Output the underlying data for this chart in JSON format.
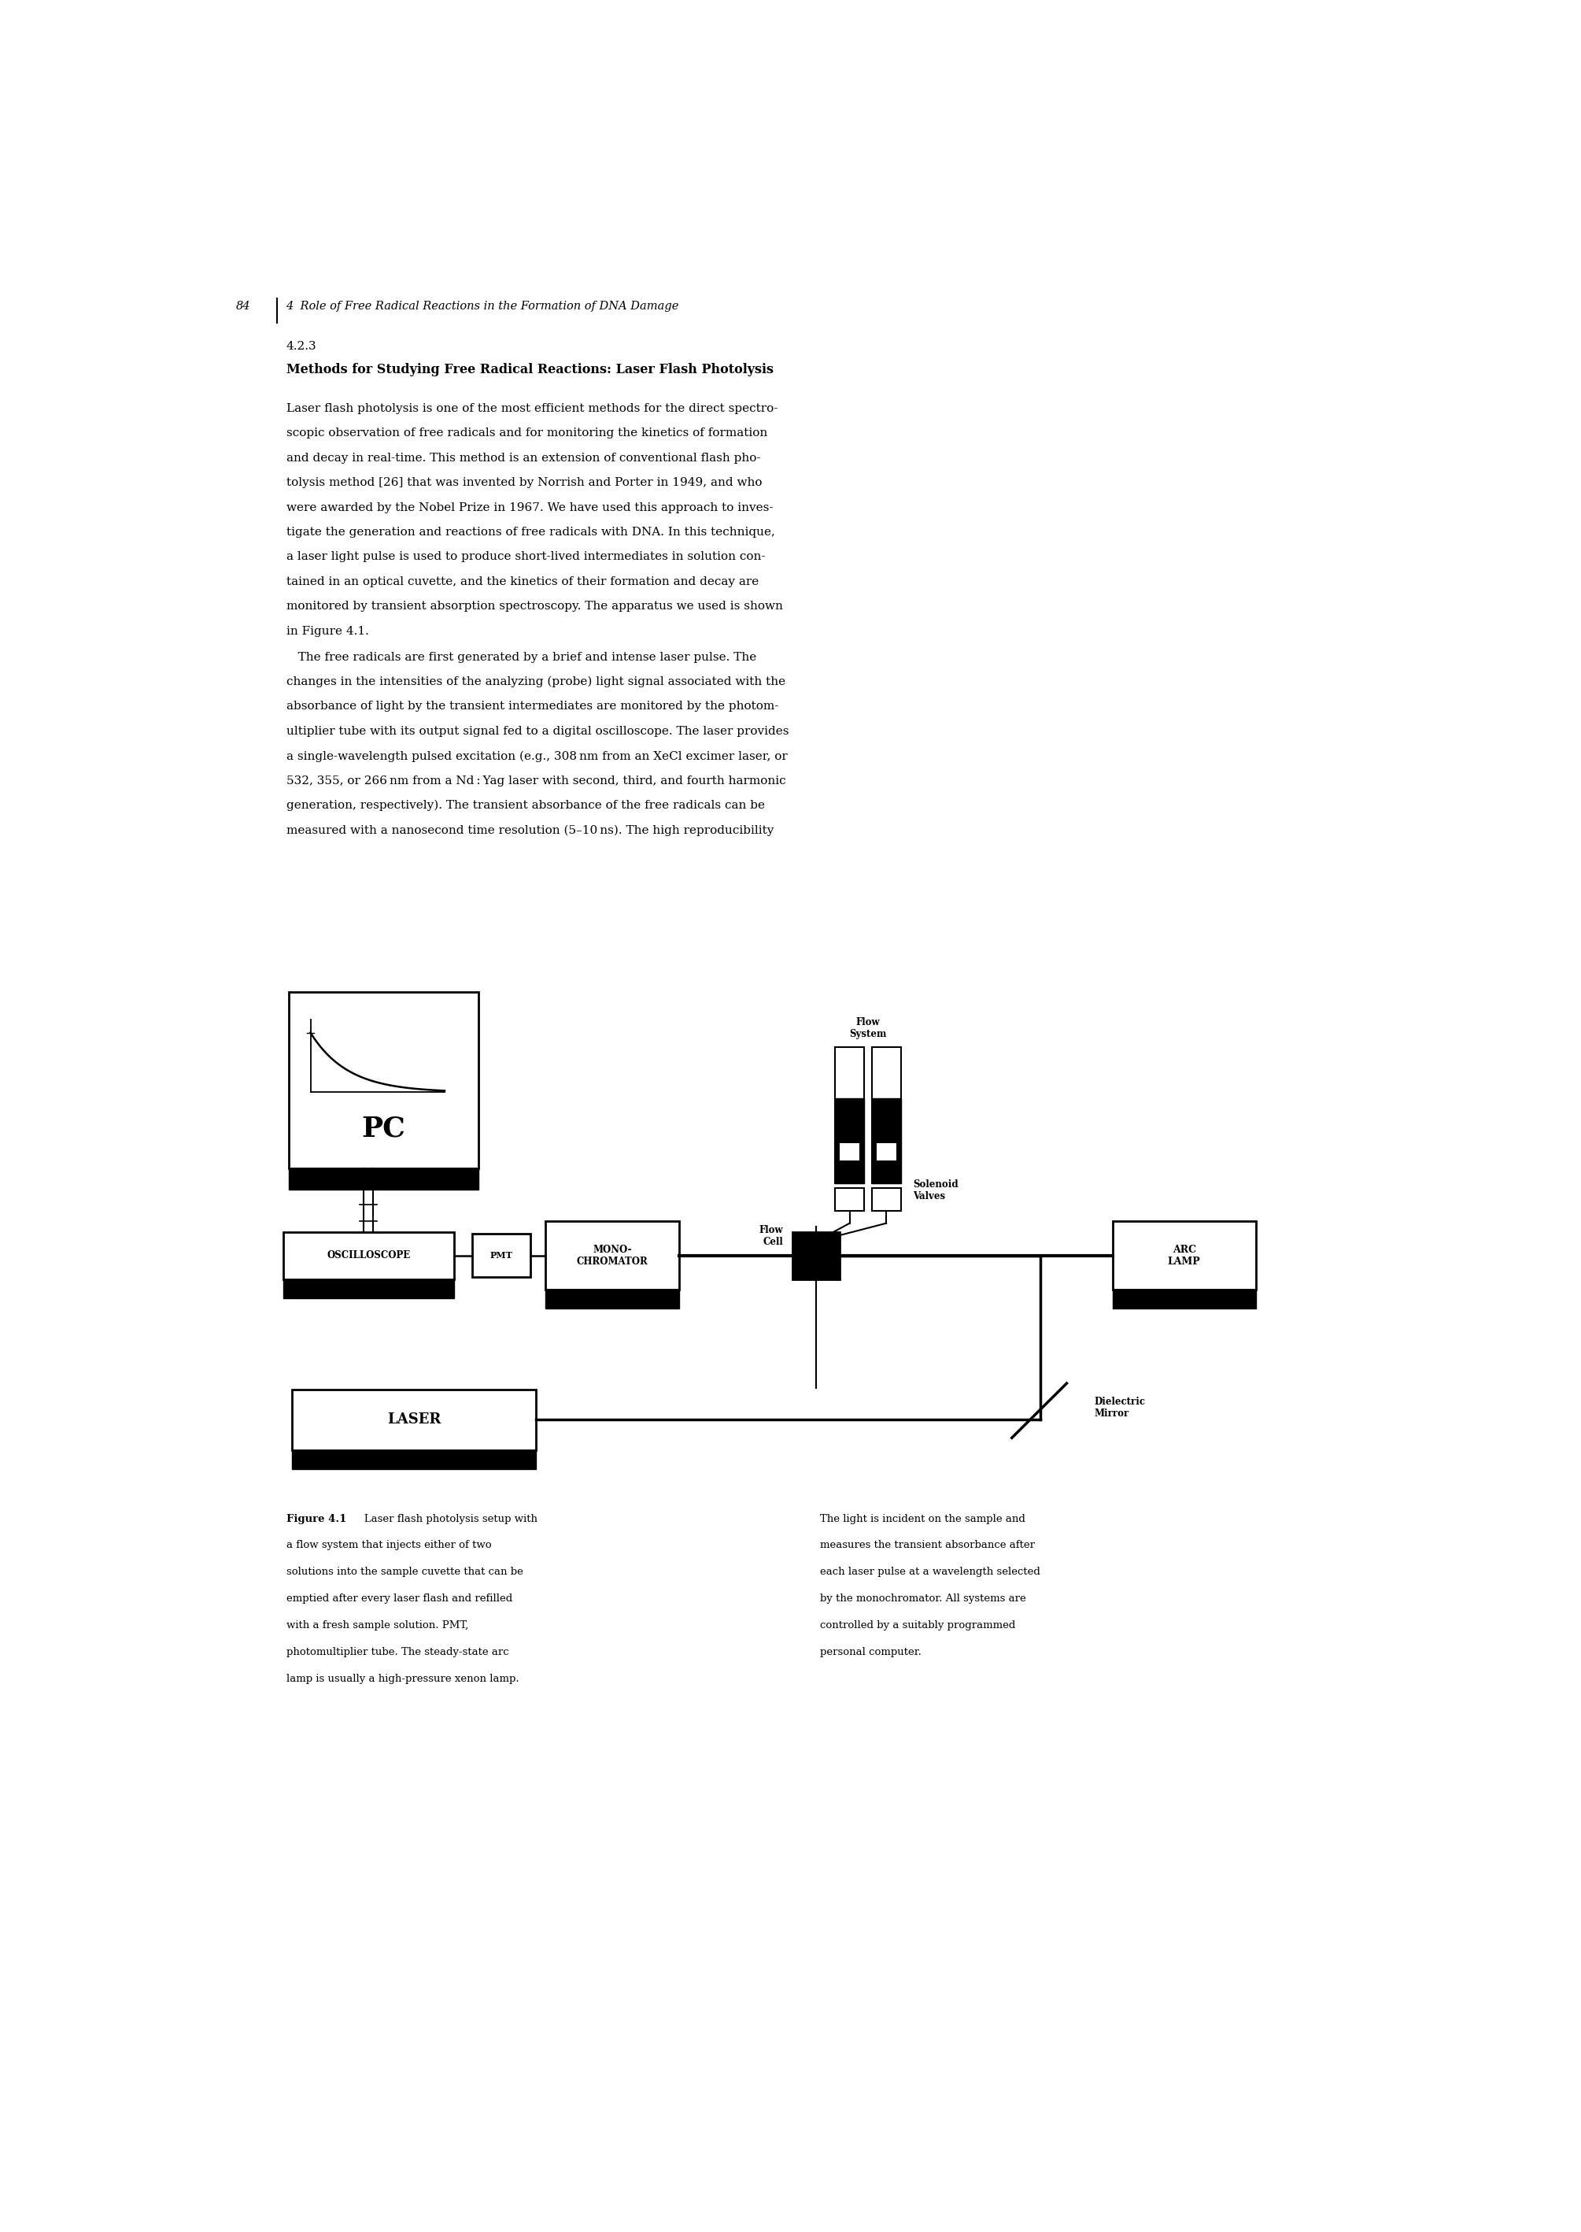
{
  "page_width": 20.09,
  "page_height": 28.35,
  "bg_color": "#ffffff",
  "header_num": "84",
  "header_title": "4  Role of Free Radical Reactions in the Formation of DNA Damage",
  "section_number": "4.2.3",
  "section_title": "Methods for Studying Free Radical Reactions: Laser Flash Photolysis",
  "body_text": [
    "Laser flash photolysis is one of the most efficient methods for the direct spectro-",
    "scopic observation of free radicals and for monitoring the kinetics of formation",
    "and decay in real-time. This method is an extension of conventional flash pho-",
    "tolysis method [26] that was invented by Norrish and Porter in 1949, and who",
    "were awarded by the Nobel Prize in 1967. We have used this approach to inves-",
    "tigate the generation and reactions of free radicals with DNA. In this technique,",
    "a laser light pulse is used to produce short-lived intermediates in solution con-",
    "tained in an optical cuvette, and the kinetics of their formation and decay are",
    "monitored by transient absorption spectroscopy. The apparatus we used is shown",
    "in Figure 4.1."
  ],
  "body_text2": [
    "   The free radicals are first generated by a brief and intense laser pulse. The",
    "changes in the intensities of the analyzing (probe) light signal associated with the",
    "absorbance of light by the transient intermediates are monitored by the photom-",
    "ultiplier tube with its output signal fed to a digital oscilloscope. The laser provides",
    "a single-wavelength pulsed excitation (e.g., 308 nm from an XeCl excimer laser, or",
    "532, 355, or 266 nm from a Nd : Yag laser with second, third, and fourth harmonic",
    "generation, respectively). The transient absorbance of the free radicals can be",
    "measured with a nanosecond time resolution (5–10 ns). The high reproducibility"
  ],
  "caption_left": [
    "a flow system that injects either of two",
    "solutions into the sample cuvette that can be",
    "emptied after every laser flash and refilled",
    "with a fresh sample solution. PMT,",
    "photomultiplier tube. The steady-state arc",
    "lamp is usually a high-pressure xenon lamp."
  ],
  "caption_right": [
    "The light is incident on the sample and",
    "measures the transient absorbance after",
    "each laser pulse at a wavelength selected",
    "by the monochromator. All systems are",
    "controlled by a suitably programmed",
    "personal computer."
  ]
}
